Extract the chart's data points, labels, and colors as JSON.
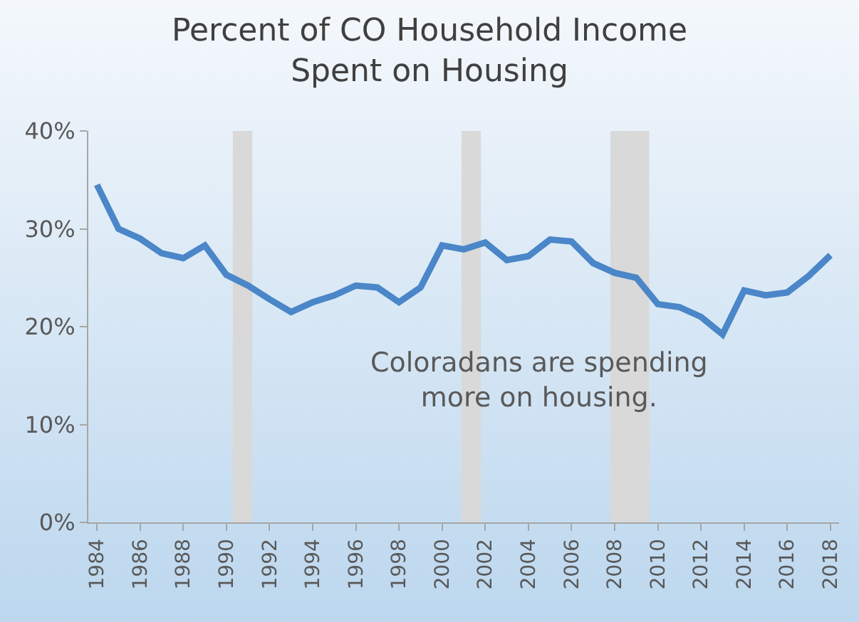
{
  "chart_data": {
    "type": "line",
    "title": "Percent of CO Household Income\nSpent on Housing",
    "x": [
      1984,
      1985,
      1986,
      1987,
      1988,
      1989,
      1990,
      1991,
      1992,
      1993,
      1994,
      1995,
      1996,
      1997,
      1998,
      1999,
      2000,
      2001,
      2002,
      2003,
      2004,
      2005,
      2006,
      2007,
      2008,
      2009,
      2010,
      2011,
      2012,
      2013,
      2014,
      2015,
      2016,
      2017,
      2018
    ],
    "series": [
      {
        "color": "#4a86c8",
        "values": [
          34.5,
          30,
          29,
          27.5,
          27,
          28.3,
          25.3,
          24.2,
          22.8,
          21.5,
          22.5,
          23.2,
          24.2,
          24,
          22.5,
          24,
          28.3,
          27.9,
          28.6,
          26.8,
          27.2,
          28.9,
          28.7,
          26.5,
          25.5,
          25,
          22.3,
          22,
          21,
          19.2,
          23.7,
          23.2,
          23.5,
          25.2,
          27.3
        ]
      }
    ],
    "xlim": [
      1983.6,
      2018.4
    ],
    "xticks": [
      1984,
      1986,
      1988,
      1990,
      1992,
      1994,
      1996,
      1998,
      2000,
      2002,
      2004,
      2006,
      2008,
      2010,
      2012,
      2014,
      2016,
      2018
    ],
    "ylim": [
      0,
      40
    ],
    "yticks": [
      {
        "value": 0,
        "label": "0%"
      },
      {
        "value": 10,
        "label": "10%"
      },
      {
        "value": 20,
        "label": "20%"
      },
      {
        "value": 30,
        "label": "30%"
      },
      {
        "value": 40,
        "label": "40%"
      }
    ],
    "bands": [
      {
        "axis": "x",
        "from": 1990.3,
        "to": 1991.2,
        "color": "#d9d9d9"
      },
      {
        "axis": "x",
        "from": 2000.9,
        "to": 2001.8,
        "color": "#d9d9d9"
      },
      {
        "axis": "x",
        "from": 2007.8,
        "to": 2009.6,
        "color": "#d9d9d9"
      }
    ],
    "annotations": [
      "Coloradans are spending\nmore on housing."
    ],
    "grid": false,
    "marker": "none",
    "line_style": "solid"
  }
}
